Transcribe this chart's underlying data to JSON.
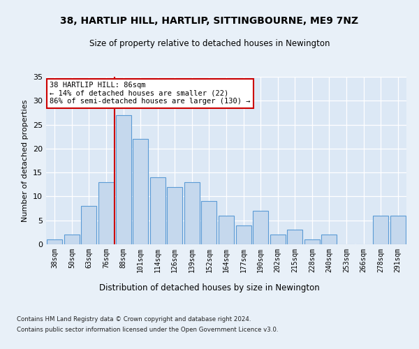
{
  "title1": "38, HARTLIP HILL, HARTLIP, SITTINGBOURNE, ME9 7NZ",
  "title2": "Size of property relative to detached houses in Newington",
  "xlabel": "Distribution of detached houses by size in Newington",
  "ylabel": "Number of detached properties",
  "categories": [
    "38sqm",
    "50sqm",
    "63sqm",
    "76sqm",
    "88sqm",
    "101sqm",
    "114sqm",
    "126sqm",
    "139sqm",
    "152sqm",
    "164sqm",
    "177sqm",
    "190sqm",
    "202sqm",
    "215sqm",
    "228sqm",
    "240sqm",
    "253sqm",
    "266sqm",
    "278sqm",
    "291sqm"
  ],
  "values": [
    1,
    2,
    8,
    13,
    27,
    22,
    14,
    12,
    13,
    9,
    6,
    4,
    7,
    2,
    3,
    1,
    2,
    0,
    0,
    6,
    6
  ],
  "bar_color": "#c5d8ed",
  "bar_edge_color": "#5b9bd5",
  "vline_index": 4,
  "annotation_text": "38 HARTLIP HILL: 86sqm\n← 14% of detached houses are smaller (22)\n86% of semi-detached houses are larger (130) →",
  "annotation_box_color": "#ffffff",
  "annotation_box_edge": "#cc0000",
  "vline_color": "#cc0000",
  "ylim": [
    0,
    35
  ],
  "yticks": [
    0,
    5,
    10,
    15,
    20,
    25,
    30,
    35
  ],
  "footer1": "Contains HM Land Registry data © Crown copyright and database right 2024.",
  "footer2": "Contains public sector information licensed under the Open Government Licence v3.0.",
  "fig_bg_color": "#e8f0f8",
  "plot_bg_color": "#dce8f5"
}
